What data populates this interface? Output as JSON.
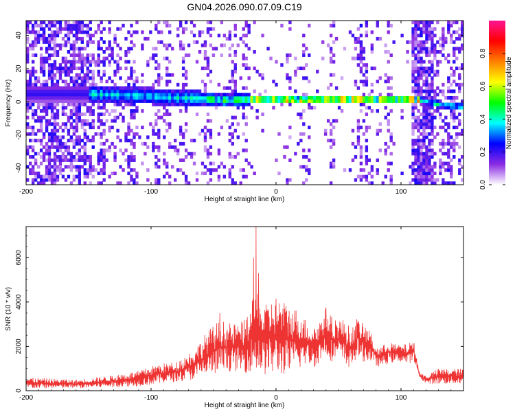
{
  "title": "GN04.2026.090.07.09.C19",
  "chart_data": [
    {
      "type": "heatmap",
      "xlabel": "Height of straight line (km)",
      "ylabel": "Frequency (Hz)",
      "xlim": [
        -200,
        150
      ],
      "ylim": [
        -50,
        49
      ],
      "xticks": [
        -200,
        -100,
        0,
        100
      ],
      "xtick_labels": [
        "-200",
        "-100",
        "0",
        "100"
      ],
      "yticks": [
        -40,
        -20,
        0,
        20,
        40
      ],
      "ytick_labels": [
        "-40",
        "-20",
        "0",
        "20",
        "40"
      ],
      "colorbar": {
        "label": "Normalized spectral amplitude",
        "range": [
          0,
          1
        ],
        "ticks": [
          0.0,
          0.2,
          0.4,
          0.6,
          0.8
        ],
        "tick_labels": [
          "0.0",
          "0.2",
          "0.4",
          "0.6",
          "0.8"
        ],
        "colors": [
          "#ffffff",
          "#8a2be2",
          "#0000ff",
          "#00ffff",
          "#00ff00",
          "#ffff00",
          "#ff8000",
          "#ff0000",
          "#ff1493"
        ]
      },
      "signal_band": {
        "centers_x": [
          -150,
          -120,
          -100,
          -80,
          -60,
          -40,
          -20,
          0,
          20,
          40,
          60,
          80,
          100,
          110,
          120,
          130,
          150
        ],
        "centers_y": [
          5,
          4,
          3.5,
          2.5,
          2,
          1,
          1.5,
          1.5,
          1,
          1.5,
          1.5,
          1.5,
          1.5,
          1.5,
          0.5,
          -1.5,
          -3
        ]
      },
      "noise_columns_x": [
        -180,
        -160,
        -140,
        -115,
        -95,
        -88,
        -75,
        -55,
        -35,
        -25,
        10,
        25,
        45,
        65,
        70,
        75,
        82,
        90,
        112,
        118,
        125,
        140
      ]
    },
    {
      "type": "line",
      "xlabel": "Height of straight line (km)",
      "ylabel": "SNR (10 * v/v)",
      "xlim": [
        -200,
        150
      ],
      "ylim": [
        0,
        7400
      ],
      "xticks": [
        -200,
        -100,
        0,
        100
      ],
      "xtick_labels": [
        "-200",
        "-100",
        "0",
        "100"
      ],
      "yticks": [
        0,
        2000,
        4000,
        6000
      ],
      "ytick_labels": [
        "0",
        "2000",
        "4000",
        "6000"
      ],
      "color": "#ee3333",
      "envelope_x": [
        -200,
        -160,
        -130,
        -110,
        -95,
        -80,
        -65,
        -55,
        -45,
        -35,
        -25,
        -18,
        -15,
        -10,
        0,
        10,
        20,
        25,
        30,
        35,
        40,
        45,
        50,
        55,
        60,
        65,
        70,
        75,
        80,
        85,
        90,
        95,
        100,
        105,
        110,
        115,
        120,
        130,
        150
      ],
      "envelope_lo": [
        100,
        100,
        150,
        200,
        300,
        400,
        500,
        600,
        800,
        900,
        800,
        900,
        800,
        700,
        700,
        700,
        1000,
        1200,
        1000,
        1300,
        1500,
        1300,
        1400,
        1100,
        1000,
        1500,
        1300,
        1300,
        1100,
        1100,
        1200,
        1300,
        1300,
        1200,
        1300,
        600,
        300,
        300,
        300
      ],
      "envelope_hi": [
        600,
        500,
        700,
        900,
        1200,
        1300,
        1900,
        2700,
        3200,
        3000,
        3200,
        4200,
        4600,
        3800,
        4300,
        3900,
        3600,
        3100,
        3000,
        3200,
        3800,
        3300,
        3300,
        3200,
        2800,
        3300,
        3000,
        2800,
        2000,
        2000,
        2300,
        2100,
        2100,
        2100,
        2300,
        800,
        700,
        1000,
        1000
      ],
      "spikes": [
        {
          "x": -16,
          "y": 7400
        },
        {
          "x": -18,
          "y": 6000
        },
        {
          "x": -14,
          "y": 5300
        },
        {
          "x": -45,
          "y": 3500
        }
      ]
    }
  ]
}
